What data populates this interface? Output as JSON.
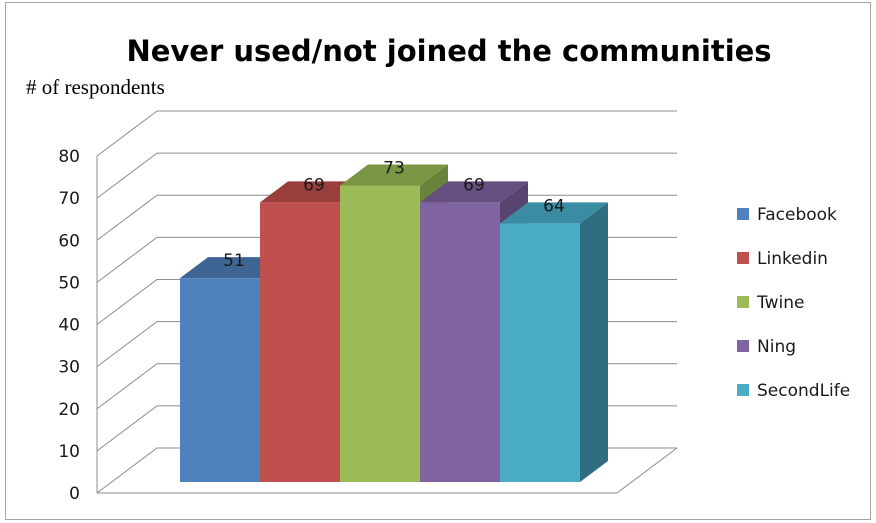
{
  "chart_data": {
    "type": "bar",
    "title": "Never used/not joined the communities",
    "ylabel": "# of respondents",
    "xlabel": "",
    "categories": [
      "Facebook",
      "Linkedin",
      "Twine",
      "Ning",
      "SecondLife"
    ],
    "values": [
      51,
      69,
      73,
      69,
      64
    ],
    "ylim": [
      0,
      80
    ],
    "yticks": [
      "0",
      "10",
      "20",
      "30",
      "40",
      "50",
      "60",
      "70",
      "80"
    ],
    "grid": true,
    "three_d": true,
    "legend": {
      "placement": "right",
      "entries": [
        "Facebook",
        "Linkedin",
        "Twine",
        "Ning",
        "SecondLife"
      ]
    },
    "colors": {
      "front": [
        "#4f81bd",
        "#c0504d",
        "#9bbb59",
        "#8064a2",
        "#4bacc6"
      ],
      "top": [
        "#3e6594",
        "#9a3e3c",
        "#7a9544",
        "#654f80",
        "#3b8ca2"
      ],
      "side": [
        "#355682",
        "#853432",
        "#6b823c",
        "#57446f",
        "#2f6e80"
      ]
    }
  }
}
